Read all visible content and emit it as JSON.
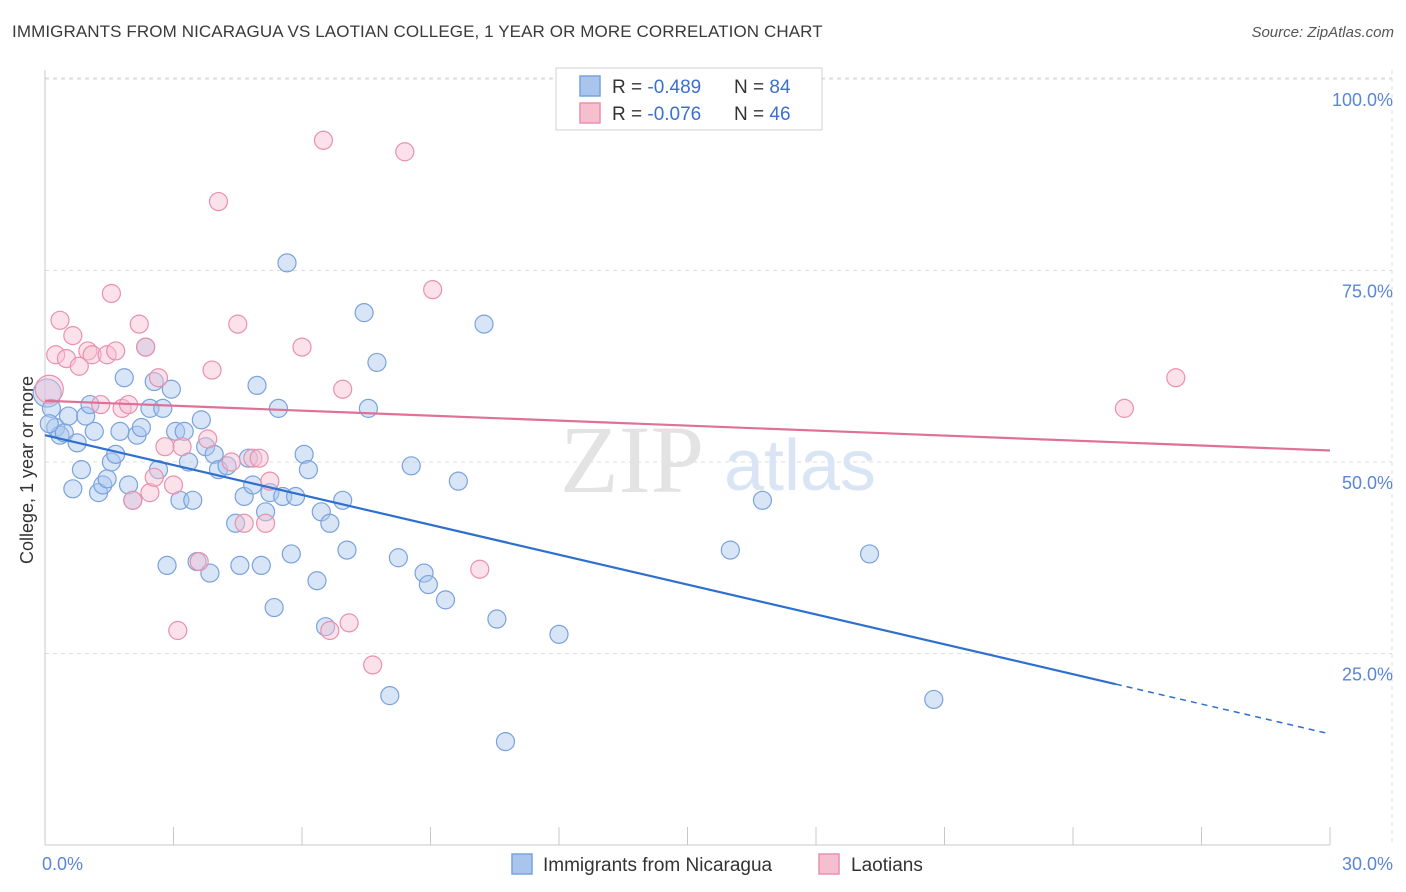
{
  "title": "IMMIGRANTS FROM NICARAGUA VS LAOTIAN COLLEGE, 1 YEAR OR MORE CORRELATION CHART",
  "source": "Source: ZipAtlas.com",
  "watermark": {
    "zip": "ZIP",
    "atlas": "atlas"
  },
  "colors": {
    "blue_fill": "#a9c5ee",
    "blue_stroke": "#7aa2dd",
    "blue_line": "#2f6fd0",
    "pink_fill": "#f6bfd0",
    "pink_stroke": "#ea90ad",
    "pink_line": "#e07098",
    "tick_text": "#5a86d6",
    "grid": "#dddddd"
  },
  "legend": {
    "rows": [
      {
        "r_label": "R = ",
        "r_value": "-0.489",
        "n_label": "N = ",
        "n_value": "84",
        "color": "blue"
      },
      {
        "r_label": "R = ",
        "r_value": "-0.076",
        "n_label": "N = ",
        "n_value": "46",
        "color": "pink"
      }
    ]
  },
  "chart_data": {
    "type": "scatter",
    "xlabel": "",
    "ylabel": "College, 1 year or more",
    "xlim": [
      0,
      30
    ],
    "ylim": [
      0,
      105
    ],
    "x_ticks": [
      "0.0%",
      "30.0%"
    ],
    "y_ticks": [
      {
        "value": 25,
        "label": "25.0%"
      },
      {
        "value": 50,
        "label": "50.0%"
      },
      {
        "value": 75,
        "label": "75.0%"
      },
      {
        "value": 100,
        "label": "100.0%"
      }
    ],
    "grid": true,
    "legend_position": "bottom",
    "series": [
      {
        "name": "Immigrants from Nicaragua",
        "color": "blue",
        "trend": {
          "x0": 0,
          "y0": 53.5,
          "x1": 25.0,
          "y1": 21.0,
          "dash_to_x": 30,
          "dash_to_y": 14.5
        },
        "points": [
          [
            0.05,
            59.0
          ],
          [
            0.15,
            57.0
          ],
          [
            0.25,
            54.5
          ],
          [
            0.35,
            53.5
          ],
          [
            0.45,
            53.8
          ],
          [
            0.55,
            56.0
          ],
          [
            0.65,
            46.5
          ],
          [
            0.75,
            52.5
          ],
          [
            0.85,
            49.0
          ],
          [
            0.95,
            56.0
          ],
          [
            1.05,
            57.5
          ],
          [
            1.15,
            54.0
          ],
          [
            1.25,
            46.0
          ],
          [
            1.35,
            47.0
          ],
          [
            1.45,
            47.8
          ],
          [
            1.55,
            50.0
          ],
          [
            1.65,
            51.0
          ],
          [
            1.75,
            54.0
          ],
          [
            1.85,
            61.0
          ],
          [
            1.95,
            47.0
          ],
          [
            2.05,
            45.0
          ],
          [
            2.15,
            53.5
          ],
          [
            2.25,
            54.5
          ],
          [
            2.35,
            65.0
          ],
          [
            2.45,
            57.0
          ],
          [
            2.55,
            60.5
          ],
          [
            2.65,
            49.0
          ],
          [
            2.75,
            57.0
          ],
          [
            2.85,
            36.5
          ],
          [
            2.95,
            59.5
          ],
          [
            3.05,
            54.0
          ],
          [
            3.15,
            45.0
          ],
          [
            3.25,
            54.0
          ],
          [
            3.35,
            50.0
          ],
          [
            3.45,
            45.0
          ],
          [
            3.55,
            37.0
          ],
          [
            3.65,
            55.5
          ],
          [
            3.75,
            52.0
          ],
          [
            3.85,
            35.5
          ],
          [
            3.95,
            51.0
          ],
          [
            4.05,
            49.0
          ],
          [
            4.25,
            49.5
          ],
          [
            4.45,
            42.0
          ],
          [
            4.55,
            36.5
          ],
          [
            4.65,
            45.5
          ],
          [
            4.75,
            50.5
          ],
          [
            4.85,
            47.0
          ],
          [
            4.95,
            60.0
          ],
          [
            5.05,
            36.5
          ],
          [
            5.15,
            43.5
          ],
          [
            5.25,
            46.0
          ],
          [
            5.35,
            31.0
          ],
          [
            5.45,
            57.0
          ],
          [
            5.55,
            45.5
          ],
          [
            5.65,
            76.0
          ],
          [
            5.75,
            38.0
          ],
          [
            5.85,
            45.5
          ],
          [
            6.05,
            51.0
          ],
          [
            6.15,
            49.0
          ],
          [
            6.35,
            34.5
          ],
          [
            6.45,
            43.5
          ],
          [
            6.55,
            28.5
          ],
          [
            6.65,
            42.0
          ],
          [
            6.95,
            45.0
          ],
          [
            7.05,
            38.5
          ],
          [
            7.45,
            69.5
          ],
          [
            7.55,
            57.0
          ],
          [
            7.75,
            63.0
          ],
          [
            8.05,
            19.5
          ],
          [
            8.25,
            37.5
          ],
          [
            8.55,
            49.5
          ],
          [
            8.85,
            35.5
          ],
          [
            8.95,
            34.0
          ],
          [
            9.35,
            32.0
          ],
          [
            9.65,
            47.5
          ],
          [
            10.25,
            68.0
          ],
          [
            10.55,
            29.5
          ],
          [
            10.75,
            13.5
          ],
          [
            12.0,
            27.5
          ],
          [
            16.0,
            38.5
          ],
          [
            16.75,
            45.0
          ],
          [
            19.25,
            38.0
          ],
          [
            20.75,
            19.0
          ],
          [
            0.1,
            55.0
          ]
        ]
      },
      {
        "name": "Laotians",
        "color": "pink",
        "trend": {
          "x0": 0,
          "y0": 58.0,
          "x1": 30,
          "y1": 51.5
        },
        "points": [
          [
            0.1,
            59.5
          ],
          [
            0.25,
            64.0
          ],
          [
            0.35,
            68.5
          ],
          [
            0.5,
            63.5
          ],
          [
            0.65,
            66.5
          ],
          [
            0.8,
            62.5
          ],
          [
            1.0,
            64.5
          ],
          [
            1.1,
            64.0
          ],
          [
            1.3,
            57.5
          ],
          [
            1.45,
            64.0
          ],
          [
            1.55,
            72.0
          ],
          [
            1.65,
            64.5
          ],
          [
            1.8,
            57.0
          ],
          [
            1.95,
            57.5
          ],
          [
            2.05,
            45.0
          ],
          [
            2.2,
            68.0
          ],
          [
            2.35,
            65.0
          ],
          [
            2.45,
            46.0
          ],
          [
            2.55,
            48.0
          ],
          [
            2.65,
            61.0
          ],
          [
            2.8,
            52.0
          ],
          [
            3.0,
            47.0
          ],
          [
            3.1,
            28.0
          ],
          [
            3.2,
            52.0
          ],
          [
            3.6,
            37.0
          ],
          [
            3.8,
            53.0
          ],
          [
            3.9,
            62.0
          ],
          [
            4.05,
            84.0
          ],
          [
            4.35,
            50.0
          ],
          [
            4.5,
            68.0
          ],
          [
            4.65,
            42.0
          ],
          [
            4.85,
            50.5
          ],
          [
            5.0,
            50.5
          ],
          [
            5.15,
            42.0
          ],
          [
            5.25,
            47.5
          ],
          [
            6.0,
            65.0
          ],
          [
            6.5,
            92.0
          ],
          [
            6.65,
            28.0
          ],
          [
            6.95,
            59.5
          ],
          [
            7.1,
            29.0
          ],
          [
            7.65,
            23.5
          ],
          [
            8.4,
            90.5
          ],
          [
            9.05,
            72.5
          ],
          [
            10.15,
            36.0
          ],
          [
            25.2,
            57.0
          ],
          [
            26.4,
            61.0
          ]
        ]
      }
    ]
  },
  "bottom_legend": {
    "items": [
      {
        "label": "Immigrants from Nicaragua",
        "color": "blue"
      },
      {
        "label": "Laotians",
        "color": "pink"
      }
    ]
  }
}
